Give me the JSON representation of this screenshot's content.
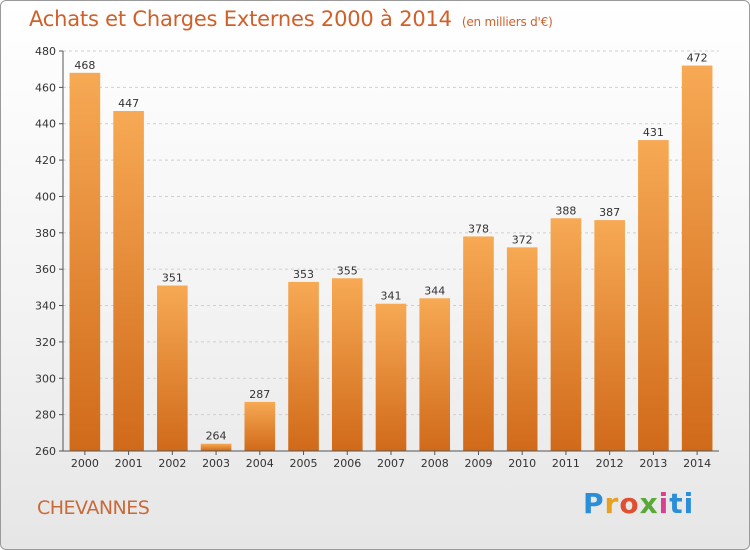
{
  "header": {
    "title": "Achats et Charges Externes 2000 à 2014",
    "subtitle": "(en milliers d'€)"
  },
  "footer": {
    "city": "CHEVANNES",
    "logo": [
      "P",
      "r",
      "o",
      "x",
      "i",
      "ti"
    ]
  },
  "chart_data": {
    "type": "bar",
    "title": "Achats et Charges Externes 2000 à 2014",
    "subtitle": "(en milliers d'€)",
    "categories": [
      "2000",
      "2001",
      "2002",
      "2003",
      "2004",
      "2005",
      "2006",
      "2007",
      "2008",
      "2009",
      "2010",
      "2011",
      "2012",
      "2013",
      "2014"
    ],
    "values": [
      468,
      447,
      351,
      264,
      287,
      353,
      355,
      341,
      344,
      378,
      372,
      388,
      387,
      431,
      472
    ],
    "xlabel": "",
    "ylabel": "",
    "ylim": [
      260,
      480
    ],
    "yticks": [
      260,
      280,
      300,
      320,
      340,
      360,
      380,
      400,
      420,
      440,
      460,
      480
    ],
    "grid": true,
    "legend": "none",
    "colors": {
      "bar_light": "#f7a954",
      "bar_dark": "#d06a1a",
      "title": "#d0602a"
    }
  }
}
